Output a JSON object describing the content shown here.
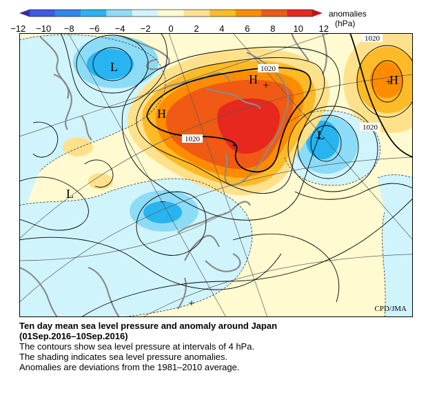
{
  "colorbar": {
    "tick_labels": [
      "−12",
      "−10",
      "−8",
      "−6",
      "−4",
      "−2",
      "0",
      "2",
      "4",
      "6",
      "8",
      "10",
      "12"
    ],
    "colors": [
      "#3c5ae6",
      "#2c86f0",
      "#28b4f0",
      "#8cdcf8",
      "#d0f4fc",
      "#fffad0",
      "#ffe18c",
      "#ffba28",
      "#ff8c00",
      "#f05a14",
      "#e6281e"
    ],
    "title_line1": "anomalies",
    "title_line2": "(hPa)"
  },
  "map": {
    "credit": "CPD/JMA",
    "pressure_labels": {
      "high": "H",
      "low": "L"
    },
    "contour_labels": [
      "1020",
      "1020",
      "1020",
      "1020"
    ],
    "anomaly_centers": [
      "+",
      "+",
      "−",
      "+",
      "+",
      "−"
    ]
  },
  "caption": {
    "title": "Ten day mean sea level pressure and anomaly around Japan",
    "period": "(01Sep.2016–10Sep.2016)",
    "line1": "The contours show sea level pressure at intervals of 4 hPa.",
    "line2": "The shading indicates sea level pressure anomalies.",
    "line3": "Anomalies are deviations from the 1981–2010 average."
  }
}
